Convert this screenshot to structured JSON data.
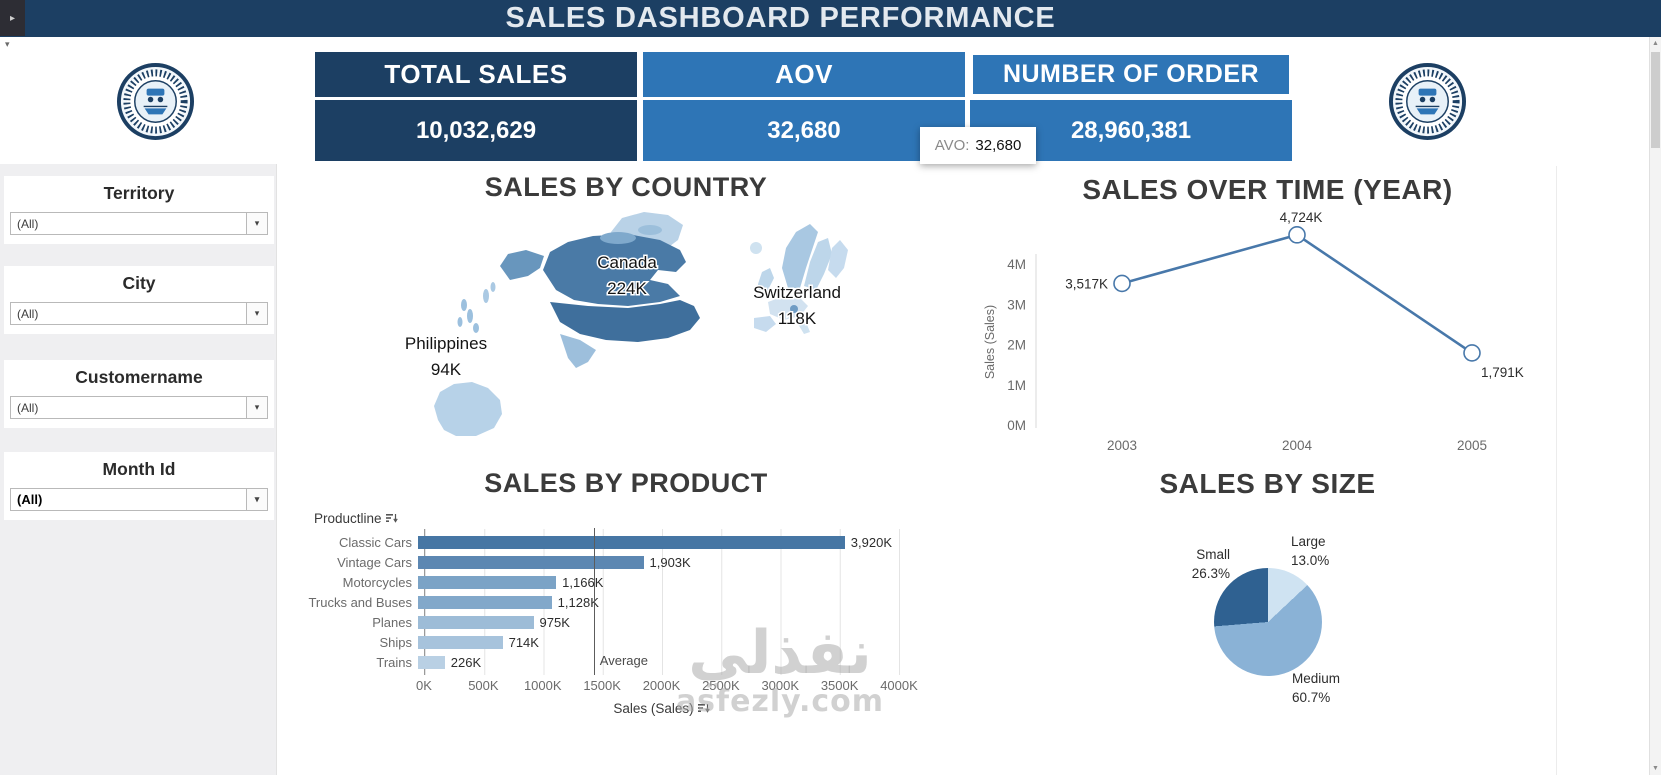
{
  "colors": {
    "navy": "#1c3f63",
    "blue": "#2e75b6",
    "line": "#4878aa",
    "bar_colors": [
      "#4676a4",
      "#5c87b2",
      "#7ba3c6",
      "#82a8ca",
      "#9dbcd7",
      "#a7c3dc",
      "#b9d0e4"
    ],
    "pie_colors": {
      "Large": "#cfe3f2",
      "Medium": "#8ab2d6",
      "Small": "#2f6191"
    }
  },
  "page": {
    "title": "SALES DASHBOARD PERFORMANCE"
  },
  "kpis": [
    {
      "label": "TOTAL SALES",
      "value": "10,032,629"
    },
    {
      "label": "AOV",
      "value": "32,680"
    },
    {
      "label": "NUMBER OF ORDER",
      "value": "28,960,381"
    }
  ],
  "tooltip": {
    "label": "AVO:",
    "value": "32,680"
  },
  "filters": [
    {
      "label": "Territory",
      "value": "(All)"
    },
    {
      "label": "City",
      "value": "(All)"
    },
    {
      "label": "Customername",
      "value": "(All)"
    },
    {
      "label": "Month Id",
      "value": "(All)"
    }
  ],
  "icons": {
    "dropdown": "▾",
    "scroll_up": "▲",
    "scroll_down": "▼",
    "corner": "▸"
  },
  "watermark": {
    "line1": "نفذلي",
    "line2": "asfezly.com"
  },
  "chart_data": [
    {
      "type": "map",
      "title": "SALES BY COUNTRY",
      "points": [
        {
          "country": "Canada",
          "value": "224K"
        },
        {
          "country": "Switzerland",
          "value": "118K"
        },
        {
          "country": "Philippines",
          "value": "94K"
        }
      ]
    },
    {
      "type": "bar",
      "title": "SALES BY PRODUCT",
      "row_header": "Productline",
      "categories": [
        "Classic Cars",
        "Vintage Cars",
        "Motorcycles",
        "Trucks and Buses",
        "Planes",
        "Ships",
        "Trains"
      ],
      "values_k": [
        3920,
        1903,
        1166,
        1128,
        975,
        714,
        226
      ],
      "value_labels": [
        "3,920K",
        "1,903K",
        "1,166K",
        "1,128K",
        "975K",
        "714K",
        "226K"
      ],
      "x_ticks": [
        "0K",
        "500K",
        "1000K",
        "1500K",
        "2000K",
        "2500K",
        "3000K",
        "3500K",
        "4000K"
      ],
      "axis_max_k": 4000,
      "xlabel": "Sales (Sales)",
      "average": {
        "label": "Average",
        "value_k": 1433
      }
    },
    {
      "type": "line",
      "title": "SALES OVER TIME (YEAR)",
      "x": [
        "2003",
        "2004",
        "2005"
      ],
      "values_k": [
        3517,
        4724,
        1791
      ],
      "point_labels": [
        "3,517K",
        "4,724K",
        "1,791K"
      ],
      "y_ticks": [
        "0M",
        "1M",
        "2M",
        "3M",
        "4M"
      ],
      "ylabel": "Sales (Sales)",
      "ylim_m": [
        0,
        5
      ],
      "legend": "none",
      "grid": "off"
    },
    {
      "type": "pie",
      "title": "SALES BY SIZE",
      "slices": [
        {
          "label": "Large",
          "pct": 13.0,
          "pct_label": "13.0%"
        },
        {
          "label": "Medium",
          "pct": 60.7,
          "pct_label": "60.7%"
        },
        {
          "label": "Small",
          "pct": 26.3,
          "pct_label": "26.3%"
        }
      ]
    }
  ]
}
